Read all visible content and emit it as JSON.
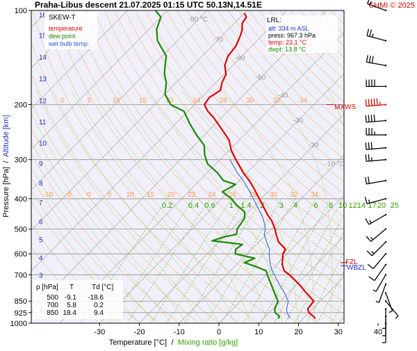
{
  "header": {
    "title": "Praha-Libus   descent   21.07.2025 01:15 UTC   50.13N,14.51E",
    "copyright": "CHMI © 2025"
  },
  "legend": {
    "title": "SKEW-T",
    "items": [
      {
        "label": "temperature",
        "color": "#e00000"
      },
      {
        "label": "dew point",
        "color": "#1a8a00"
      },
      {
        "label": "wet bulb temp.",
        "color": "#2060d0"
      }
    ]
  },
  "info_box": {
    "title": "LRL:",
    "lines": [
      {
        "text": "alt: 334 m ASL",
        "color": "#2030c0"
      },
      {
        "text": "press: 967.3 hPa",
        "color": "#000000"
      },
      {
        "text": "temp: 23.1 °C",
        "color": "#e00000"
      },
      {
        "text": "dwpt: 13.8 °C",
        "color": "#1a8a00"
      }
    ]
  },
  "levels_table": {
    "headers": [
      "p [hPa]",
      "T",
      "Td [°C]"
    ],
    "rows": [
      [
        "500",
        "-9.1",
        "-18.6"
      ],
      [
        "700",
        "5.8",
        "0.2"
      ],
      [
        "850",
        "18.4",
        "9.4"
      ]
    ]
  },
  "markers": {
    "mxws": "MXWS",
    "fzl": "FZL",
    "wbzl": "WBZL"
  },
  "chart_data": {
    "type": "line",
    "subtype": "skew-T log-p",
    "xlabel": "Temperature [°C]",
    "xlabel_separator": "/",
    "xlabel2": "Mixing ratio [g/kg]",
    "ylabel": "Pressure [hPa]",
    "ylabel_separator": "/",
    "ylabel2": "Altitude [km]",
    "x_ticks": [
      -30,
      -20,
      -10,
      0,
      10,
      20,
      30,
      40
    ],
    "xlim": [
      -38,
      47
    ],
    "ylim": [
      1000,
      100
    ],
    "y_scale": "log",
    "pressure_ticks": [
      100,
      200,
      300,
      400,
      500,
      600,
      700,
      850,
      925,
      1000
    ],
    "altitude_ticks": [
      {
        "km": 1,
        "p": 900
      },
      {
        "km": 2,
        "p": 795
      },
      {
        "km": 3,
        "p": 701
      },
      {
        "km": 4,
        "p": 616
      },
      {
        "km": 5,
        "p": 540
      },
      {
        "km": 6,
        "p": 472
      },
      {
        "km": 7,
        "p": 411
      },
      {
        "km": 8,
        "p": 356
      },
      {
        "km": 9,
        "p": 308
      },
      {
        "km": 10,
        "p": 265
      },
      {
        "km": 11,
        "p": 227
      },
      {
        "km": 12,
        "p": 194
      },
      {
        "km": 13,
        "p": 165
      },
      {
        "km": 14,
        "p": 141
      },
      {
        "km": 15,
        "p": 120
      },
      {
        "km": 16,
        "p": 103
      }
    ],
    "isotherm_labels": [
      {
        "t": -80,
        "p": 107
      },
      {
        "t": -70,
        "p": 124
      },
      {
        "t": -60,
        "p": 142
      },
      {
        "t": -50,
        "p": 164
      },
      {
        "t": -40,
        "p": 187
      },
      {
        "t": -30,
        "p": 225
      },
      {
        "t": -20,
        "p": 270
      },
      {
        "t": -10,
        "p": 310
      }
    ],
    "dry_adiabat_labels_200": [
      "0",
      "5",
      "10",
      "15",
      "20",
      "24",
      "28",
      "30",
      "32",
      "34"
    ],
    "dry_adiabat_labels_400": [
      "-10",
      "-5",
      "0",
      "5",
      "10",
      "15",
      "20",
      "22",
      "24",
      "26",
      "28",
      "30",
      "32",
      "34"
    ],
    "mixing_ratio_labels": [
      "0.2",
      "0.4",
      "0.6",
      "1",
      "1.4",
      "2",
      "3",
      "4",
      "6",
      "8",
      "10",
      "12",
      "14",
      "17",
      "20",
      "25"
    ],
    "mixing_ratio_values": [
      0.2,
      0.4,
      0.6,
      1,
      1.4,
      2,
      3,
      4,
      6,
      8,
      10,
      12,
      14,
      17,
      20,
      25
    ],
    "fzl_pressure": 640,
    "wbzl_pressure": 655,
    "mxws_pressure": 200,
    "series": [
      {
        "name": "temperature",
        "color": "#e00000",
        "points": [
          [
            967,
            23.1
          ],
          [
            950,
            22.0
          ],
          [
            925,
            20.0
          ],
          [
            900,
            18.8
          ],
          [
            850,
            18.4
          ],
          [
            800,
            14.5
          ],
          [
            750,
            10.5
          ],
          [
            700,
            5.8
          ],
          [
            680,
            3.5
          ],
          [
            650,
            1.5
          ],
          [
            600,
            -1.0
          ],
          [
            580,
            -1.5
          ],
          [
            550,
            -5.0
          ],
          [
            520,
            -7.5
          ],
          [
            500,
            -9.1
          ],
          [
            470,
            -12.0
          ],
          [
            450,
            -14.5
          ],
          [
            420,
            -18.0
          ],
          [
            400,
            -20.5
          ],
          [
            370,
            -24.5
          ],
          [
            350,
            -27.5
          ],
          [
            330,
            -31.0
          ],
          [
            300,
            -36.0
          ],
          [
            280,
            -39.5
          ],
          [
            260,
            -42.5
          ],
          [
            240,
            -47.0
          ],
          [
            220,
            -52.0
          ],
          [
            210,
            -55.0
          ],
          [
            200,
            -57.5
          ],
          [
            190,
            -58.0
          ],
          [
            180,
            -57.0
          ],
          [
            170,
            -58.5
          ],
          [
            160,
            -59.5
          ],
          [
            150,
            -62.0
          ],
          [
            140,
            -63.5
          ],
          [
            130,
            -64.0
          ],
          [
            120,
            -65.5
          ],
          [
            115,
            -66.5
          ],
          [
            110,
            -68.0
          ],
          [
            105,
            -68.5
          ],
          [
            102,
            -70.0
          ]
        ]
      },
      {
        "name": "dew point",
        "color": "#1a8a00",
        "points": [
          [
            967,
            13.8
          ],
          [
            950,
            13.5
          ],
          [
            925,
            11.5
          ],
          [
            900,
            10.5
          ],
          [
            850,
            9.4
          ],
          [
            800,
            6.5
          ],
          [
            750,
            3.5
          ],
          [
            700,
            0.2
          ],
          [
            680,
            -1.0
          ],
          [
            660,
            -4.5
          ],
          [
            640,
            -8.5
          ],
          [
            620,
            -7.0
          ],
          [
            600,
            -13.0
          ],
          [
            580,
            -14.0
          ],
          [
            560,
            -13.5
          ],
          [
            545,
            -22.0
          ],
          [
            530,
            -20.0
          ],
          [
            520,
            -17.5
          ],
          [
            510,
            -18.0
          ],
          [
            500,
            -18.6
          ],
          [
            480,
            -19.0
          ],
          [
            460,
            -19.5
          ],
          [
            440,
            -21.0
          ],
          [
            420,
            -24.5
          ],
          [
            400,
            -27.5
          ],
          [
            380,
            -31.5
          ],
          [
            360,
            -30.0
          ],
          [
            350,
            -34.0
          ],
          [
            330,
            -37.5
          ],
          [
            310,
            -42.0
          ],
          [
            290,
            -45.0
          ],
          [
            270,
            -47.5
          ],
          [
            250,
            -52.0
          ],
          [
            230,
            -56.5
          ],
          [
            210,
            -61.0
          ],
          [
            200,
            -66.0
          ],
          [
            185,
            -70.0
          ],
          [
            170,
            -72.5
          ],
          [
            160,
            -75.0
          ],
          [
            150,
            -77.0
          ],
          [
            140,
            -79.0
          ],
          [
            125,
            -85.0
          ],
          [
            115,
            -88.0
          ],
          [
            105,
            -90.0
          ],
          [
            100,
            -93.0
          ]
        ]
      },
      {
        "name": "wet bulb temp.",
        "color": "#2060d0",
        "points": [
          [
            967,
            16.5
          ],
          [
            950,
            16.0
          ],
          [
            925,
            14.5
          ],
          [
            900,
            13.5
          ],
          [
            850,
            12.0
          ],
          [
            800,
            9.0
          ],
          [
            750,
            5.5
          ],
          [
            700,
            2.0
          ],
          [
            680,
            0.5
          ],
          [
            650,
            -1.5
          ],
          [
            600,
            -4.5
          ],
          [
            580,
            -5.5
          ],
          [
            550,
            -8.0
          ],
          [
            520,
            -10.5
          ],
          [
            500,
            -11.5
          ],
          [
            470,
            -14.0
          ],
          [
            450,
            -16.0
          ],
          [
            420,
            -19.5
          ],
          [
            400,
            -22.0
          ],
          [
            370,
            -26.0
          ],
          [
            350,
            -29.0
          ],
          [
            330,
            -32.5
          ],
          [
            300,
            -37.5
          ]
        ]
      }
    ],
    "wind_barbs": [
      {
        "p": 100,
        "dir": 290,
        "kt": 15
      },
      {
        "p": 125,
        "dir": 285,
        "kt": 25
      },
      {
        "p": 150,
        "dir": 280,
        "kt": 30
      },
      {
        "p": 175,
        "dir": 270,
        "kt": 40
      },
      {
        "p": 200,
        "dir": 265,
        "kt": 55
      },
      {
        "p": 225,
        "dir": 265,
        "kt": 40
      },
      {
        "p": 250,
        "dir": 270,
        "kt": 35
      },
      {
        "p": 275,
        "dir": 265,
        "kt": 30
      },
      {
        "p": 300,
        "dir": 265,
        "kt": 25
      },
      {
        "p": 350,
        "dir": 260,
        "kt": 20
      },
      {
        "p": 400,
        "dir": 255,
        "kt": 15
      },
      {
        "p": 450,
        "dir": 240,
        "kt": 15
      },
      {
        "p": 500,
        "dir": 230,
        "kt": 15
      },
      {
        "p": 550,
        "dir": 225,
        "kt": 15
      },
      {
        "p": 600,
        "dir": 220,
        "kt": 10
      },
      {
        "p": 650,
        "dir": 215,
        "kt": 10
      },
      {
        "p": 700,
        "dir": 210,
        "kt": 5
      },
      {
        "p": 750,
        "dir": 200,
        "kt": 5
      },
      {
        "p": 800,
        "dir": 160,
        "kt": 5
      },
      {
        "p": 850,
        "dir": 140,
        "kt": 5
      },
      {
        "p": 900,
        "dir": 180,
        "kt": 5
      },
      {
        "p": 950,
        "dir": 180,
        "kt": 5
      },
      {
        "p": 1000,
        "dir": 180,
        "kt": 5
      }
    ]
  }
}
